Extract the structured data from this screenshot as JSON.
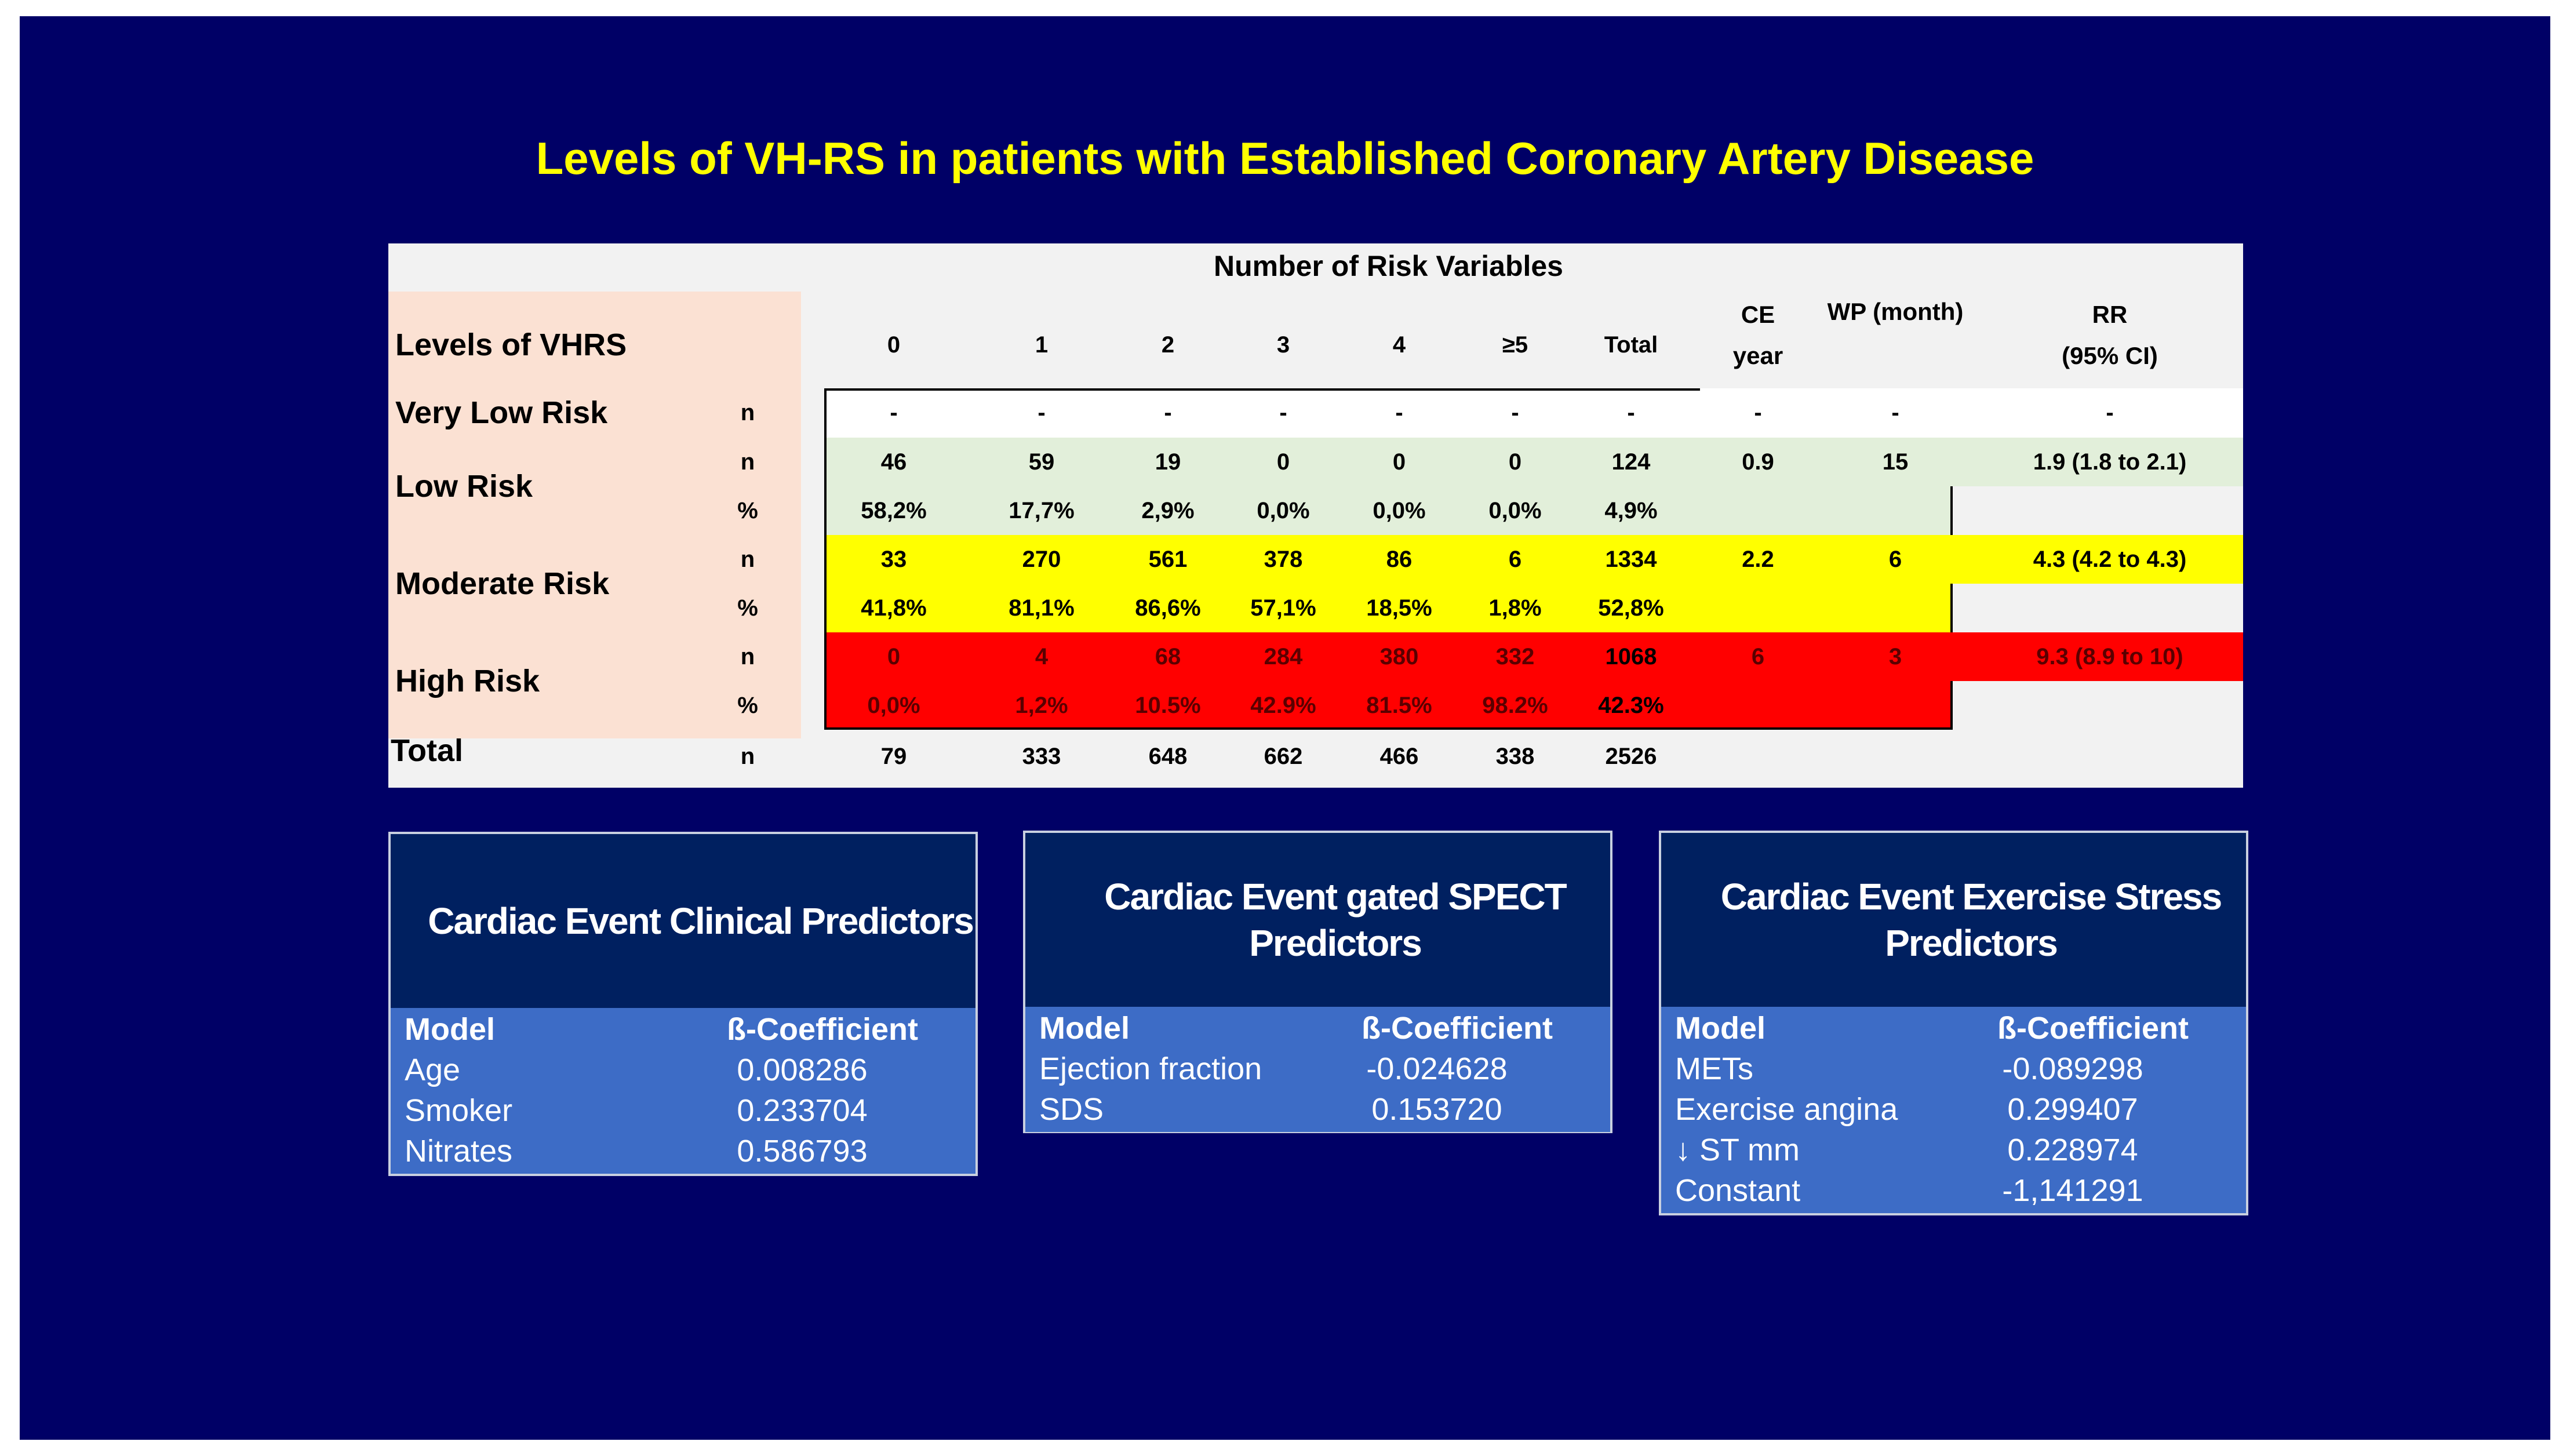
{
  "title": "Levels of VH-RS in patients with Established Coronary Artery Disease",
  "table": {
    "group_header": "Number of Risk Variables",
    "levels_header": "Levels of VHRS",
    "columns": [
      "0",
      "1",
      "2",
      "3",
      "4",
      "≥5",
      "Total"
    ],
    "ce_header": [
      "CE",
      "year"
    ],
    "wp_header": "WP (month)",
    "rr_header": [
      "RR",
      "(95%  CI)"
    ],
    "rows": [
      {
        "level": "Very Low Risk",
        "stat": "n",
        "values": [
          "-",
          "-",
          "-",
          "-",
          "-",
          "-",
          "-"
        ],
        "ce": "-",
        "wp": "-",
        "rr": "-"
      },
      {
        "level": "Low Risk",
        "stat": "n",
        "values": [
          "46",
          "59",
          "19",
          "0",
          "0",
          "0",
          "124"
        ],
        "ce": "0.9",
        "wp": "15",
        "rr": "1.9 (1.8 to 2.1)"
      },
      {
        "level": "",
        "stat": "%",
        "values": [
          "58,2%",
          "17,7%",
          "2,9%",
          "0,0%",
          "0,0%",
          "0,0%",
          "4,9%"
        ]
      },
      {
        "level": "Moderate Risk",
        "stat": "n",
        "values": [
          "33",
          "270",
          "561",
          "378",
          "86",
          "6",
          "1334"
        ],
        "ce": "2.2",
        "wp": "6",
        "rr": "4.3 (4.2 to 4.3)"
      },
      {
        "level": "",
        "stat": "%",
        "values": [
          "41,8%",
          "81,1%",
          "86,6%",
          "57,1%",
          "18,5%",
          "1,8%",
          "52,8%"
        ]
      },
      {
        "level": "High Risk",
        "stat": "n",
        "values": [
          "0",
          "4",
          "68",
          "284",
          "380",
          "332",
          "1068"
        ],
        "ce": "6",
        "wp": "3",
        "rr": "9.3 (8.9 to 10)"
      },
      {
        "level": "",
        "stat": "%",
        "values": [
          "0,0%",
          "1,2%",
          "10.5%",
          "42.9%",
          "81.5%",
          "98.2%",
          "42.3%"
        ]
      }
    ],
    "total_row": {
      "label": "Total",
      "stat": "n",
      "values": [
        "79",
        "333",
        "648",
        "662",
        "466",
        "338",
        "2526"
      ]
    }
  },
  "boxes": [
    {
      "title": "Cardiac Event Clinical Predictors",
      "header": [
        "Model",
        "ß-Coefficient"
      ],
      "rows": [
        [
          "Age",
          "0.008286"
        ],
        [
          "Smoker",
          "0.233704"
        ],
        [
          "Nitrates",
          "0.586793"
        ]
      ]
    },
    {
      "title": "Cardiac Event gated SPECT Predictors",
      "header": [
        "Model",
        "ß-Coefficient"
      ],
      "rows": [
        [
          "Ejection fraction",
          "-0.024628"
        ],
        [
          "SDS",
          "0.153720"
        ]
      ]
    },
    {
      "title": "Cardiac Event Exercise Stress Predictors",
      "header": [
        "Model",
        "ß-Coefficient"
      ],
      "rows": [
        [
          "METs",
          "-0.089298"
        ],
        [
          "Exercise angina",
          "0.299407"
        ],
        [
          "↓ ST mm",
          "0.228974"
        ],
        [
          "Constant",
          "-1,141291"
        ]
      ]
    }
  ],
  "colors": {
    "background": "#000066",
    "title": "#ffff00",
    "low_risk": "#e2efda",
    "moderate_risk": "#ffff00",
    "high_risk": "#ff0000",
    "box_head": "#002060",
    "box_body": "#3d6cc6"
  }
}
